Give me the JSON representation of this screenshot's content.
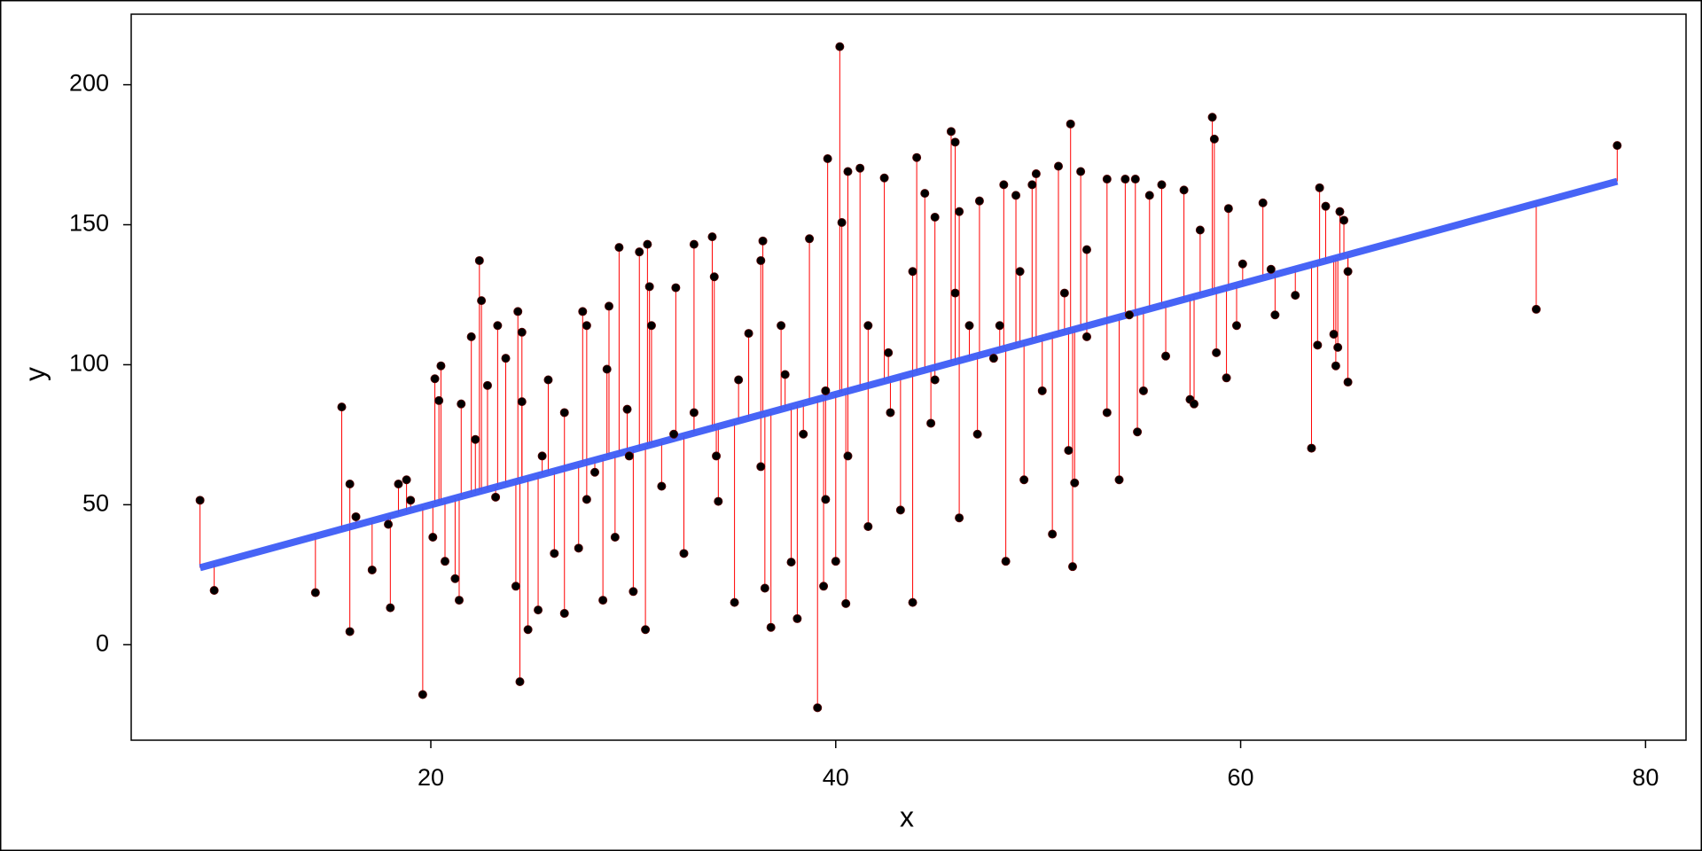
{
  "chart_data": {
    "type": "scatter",
    "x_label": "x",
    "y_label": "y",
    "xlim": [
      5.2,
      82.0
    ],
    "ylim": [
      -34.1,
      225.2
    ],
    "xticks": [
      20,
      40,
      60,
      80
    ],
    "yticks": [
      0,
      50,
      100,
      150,
      200
    ],
    "residual_color": "#ff0000",
    "series": [
      {
        "color": "#000000",
        "x": [
          8.6,
          9.3,
          14.3,
          15.6,
          16.0,
          16.0,
          16.3,
          17.1,
          17.9,
          18.0,
          18.4,
          18.8,
          19.0,
          19.6,
          20.1,
          20.2,
          20.5,
          20.4,
          20.7,
          21.2,
          21.4,
          21.5,
          22.0,
          22.2,
          22.4,
          22.5,
          22.8,
          23.2,
          23.3,
          23.7,
          24.2,
          24.4,
          24.3,
          24.5,
          24.8,
          25.3,
          25.8,
          26.1,
          26.6,
          27.3,
          27.5,
          27.7,
          28.1,
          28.5,
          28.8,
          29.1,
          29.3,
          29.7,
          30.0,
          30.3,
          30.6,
          30.7,
          30.8,
          31.4,
          32.1,
          32.5,
          33.0,
          33.9,
          34.2,
          34.0,
          35.0,
          35.7,
          36.4,
          36.5,
          36.8,
          37.5,
          37.8,
          38.1,
          38.7,
          39.1,
          39.4,
          39.6,
          40.2,
          40.3,
          40.0,
          40.6,
          40.5,
          41.2,
          41.6,
          42.4,
          42.6,
          43.2,
          43.8,
          44.0,
          44.4,
          44.7,
          45.7,
          45.9,
          46.1,
          46.1,
          46.6,
          47.1,
          47.8,
          48.3,
          48.4,
          48.9,
          49.3,
          49.7,
          49.9,
          50.7,
          51.0,
          51.5,
          51.6,
          51.7,
          51.8,
          52.1,
          52.4,
          53.4,
          54.0,
          54.3,
          54.8,
          54.9,
          55.2,
          55.5,
          56.1,
          56.3,
          57.2,
          57.5,
          57.7,
          58.0,
          58.6,
          58.7,
          58.8,
          59.3,
          59.4,
          59.8,
          60.1,
          61.1,
          61.5,
          61.7,
          62.7,
          63.5,
          63.8,
          63.9,
          64.2,
          64.6,
          64.7,
          64.8,
          64.9,
          65.1,
          65.3,
          65.3,
          74.6,
          78.6,
          32.0,
          33.0,
          34.1,
          35.2,
          36.3,
          37.3,
          38.4,
          39.5,
          40.6,
          41.6,
          42.7,
          43.8,
          44.9,
          45.9,
          47.0,
          48.1,
          49.1,
          50.2,
          51.3,
          52.4,
          53.4,
          54.5,
          30.9,
          29.8,
          28.7,
          27.7,
          26.6,
          25.5,
          24.5,
          39.5,
          36.3,
          44.9
        ],
        "values": [
          51.6,
          19.4,
          18.6,
          84.9,
          4.7,
          57.4,
          45.7,
          26.7,
          43.0,
          13.2,
          57.4,
          58.9,
          51.6,
          -17.8,
          38.4,
          95.0,
          99.6,
          87.2,
          29.8,
          23.6,
          15.9,
          86.0,
          110,
          73.3,
          137.2,
          122.9,
          92.6,
          52.7,
          114,
          102.3,
          20.9,
          -13.2,
          119,
          111.6,
          5.4,
          12.4,
          94.6,
          32.6,
          11.2,
          34.5,
          119,
          114,
          61.6,
          15.9,
          120.9,
          38.4,
          141.9,
          84.1,
          19.0,
          140.3,
          5.4,
          143.0,
          127.9,
          56.6,
          127.5,
          32.6,
          143.0,
          145.7,
          51.2,
          131.4,
          15.1,
          111.2,
          144.2,
          20.2,
          6.2,
          96.5,
          29.5,
          9.3,
          145.0,
          -22.5,
          20.9,
          173.6,
          213.6,
          150.8,
          29.8,
          169,
          14.7,
          170.2,
          42.2,
          166.7,
          104.3,
          48.1,
          15.1,
          174.0,
          161.2,
          79.1,
          183.3,
          179.5,
          154.7,
          45.3,
          114,
          158.5,
          102.3,
          164.3,
          29.8,
          160.5,
          58.9,
          164.3,
          168.2,
          39.5,
          170.9,
          69.4,
          186.0,
          27.9,
          57.8,
          169,
          110,
          166.3,
          58.9,
          166.3,
          166.3,
          76.0,
          90.7,
          160.5,
          164.3,
          103.1,
          162.4,
          87.6,
          86.0,
          148.1,
          188.4,
          180.6,
          104.3,
          95.3,
          155.8,
          114,
          136.0,
          157.8,
          134.1,
          117.8,
          124.8,
          70.2,
          107.0,
          163.2,
          156.6,
          110.9,
          99.6,
          106.2,
          154.7,
          151.6,
          93.8,
          133.3,
          119.8,
          178.3,
          75.2,
          82.9,
          67.4,
          94.6,
          63.6,
          114,
          75.2,
          90.7,
          67.4,
          114,
          82.9,
          133.3,
          94.6,
          125.6,
          75.2,
          114,
          133.3,
          90.7,
          125.6,
          141.1,
          82.9,
          117.8,
          114,
          67.4,
          98.4,
          51.9,
          82.9,
          67.4,
          86.8,
          51.9,
          137.2,
          152.7
        ]
      }
    ],
    "fit": {
      "color": "#3d5cf5",
      "x": [
        8.6,
        78.6
      ],
      "y": [
        27.5,
        165.5
      ]
    }
  }
}
